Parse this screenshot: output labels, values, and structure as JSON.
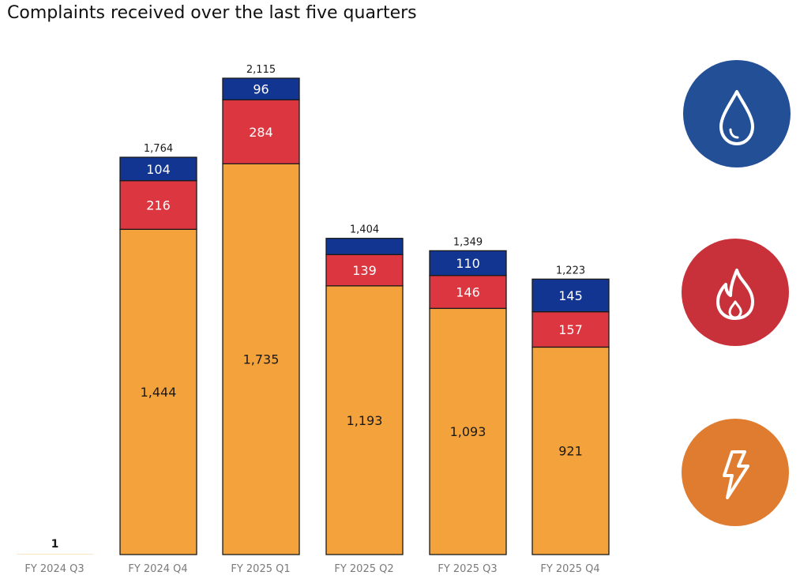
{
  "title": "Complaints received over the last five quarters",
  "colors": {
    "orange": "#F4A23B",
    "red": "#DC3740",
    "navy": "#133592",
    "water": "#234F97",
    "gas": "#C8313A",
    "electricity": "#E07C2F"
  },
  "icons": [
    {
      "name": "water-drop-icon"
    },
    {
      "name": "flame-icon"
    },
    {
      "name": "lightning-bolt-icon"
    }
  ],
  "chart_data": {
    "type": "bar",
    "stacked": true,
    "categories": [
      "FY 2024 Q3",
      "FY 2024 Q4",
      "FY 2025 Q1",
      "FY 2025 Q2",
      "FY 2025 Q3",
      "FY 2025 Q4"
    ],
    "series": [
      {
        "color": "#F4A23B",
        "values": [
          1,
          1444,
          1735,
          1193,
          1093,
          921
        ],
        "labels": [
          "",
          "1,444",
          "1,735",
          "1,193",
          "1,093",
          "921"
        ]
      },
      {
        "color": "#DC3740",
        "values": [
          0,
          216,
          284,
          139,
          146,
          157
        ],
        "labels": [
          "",
          "216",
          "284",
          "139",
          "146",
          "157"
        ]
      },
      {
        "color": "#133592",
        "values": [
          0,
          104,
          96,
          72,
          110,
          145
        ],
        "labels": [
          "",
          "104",
          "96",
          "",
          "110",
          "145"
        ]
      }
    ],
    "totals": [
      1,
      1764,
      2115,
      1404,
      1349,
      1223
    ],
    "total_labels": [
      "1",
      "1,764",
      "2,115",
      "1,404",
      "1,349",
      "1,223"
    ],
    "ylim": [
      0,
      2200
    ],
    "grid": false,
    "legend": "none"
  }
}
